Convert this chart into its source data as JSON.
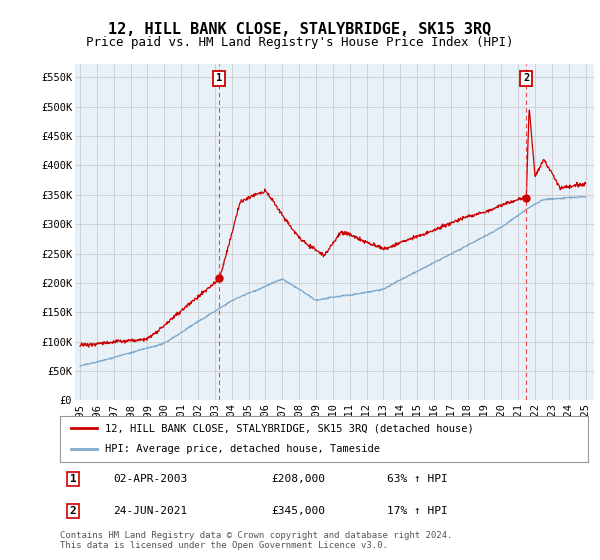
{
  "title": "12, HILL BANK CLOSE, STALYBRIDGE, SK15 3RQ",
  "subtitle": "Price paid vs. HM Land Registry's House Price Index (HPI)",
  "ylim": [
    0,
    570000
  ],
  "yticks": [
    0,
    50000,
    100000,
    150000,
    200000,
    250000,
    300000,
    350000,
    400000,
    450000,
    500000,
    550000
  ],
  "ytick_labels": [
    "£0",
    "£50K",
    "£100K",
    "£150K",
    "£200K",
    "£250K",
    "£300K",
    "£350K",
    "£400K",
    "£450K",
    "£500K",
    "£550K"
  ],
  "xticks": [
    1995,
    1996,
    1997,
    1998,
    1999,
    2000,
    2001,
    2002,
    2003,
    2004,
    2005,
    2006,
    2007,
    2008,
    2009,
    2010,
    2011,
    2012,
    2013,
    2014,
    2015,
    2016,
    2017,
    2018,
    2019,
    2020,
    2021,
    2022,
    2023,
    2024,
    2025
  ],
  "sale1_x": 2003.25,
  "sale1_y": 208000,
  "sale1_label": "1",
  "sale1_date": "02-APR-2003",
  "sale1_price": "£208,000",
  "sale1_hpi": "63% ↑ HPI",
  "sale2_x": 2021.48,
  "sale2_y": 345000,
  "sale2_label": "2",
  "sale2_date": "24-JUN-2021",
  "sale2_price": "£345,000",
  "sale2_hpi": "17% ↑ HPI",
  "red_line_color": "#cc0000",
  "blue_line_color": "#7faacc",
  "blue_fill_color": "#ddeeff",
  "dashed_vline_color": "#ee4444",
  "grid_color": "#cccccc",
  "background_color": "#ffffff",
  "chart_bg_color": "#e8f0f8",
  "legend_label1": "12, HILL BANK CLOSE, STALYBRIDGE, SK15 3RQ (detached house)",
  "legend_label2": "HPI: Average price, detached house, Tameside",
  "footer": "Contains HM Land Registry data © Crown copyright and database right 2024.\nThis data is licensed under the Open Government Licence v3.0.",
  "title_fontsize": 11,
  "subtitle_fontsize": 9,
  "tick_fontsize": 7.5
}
